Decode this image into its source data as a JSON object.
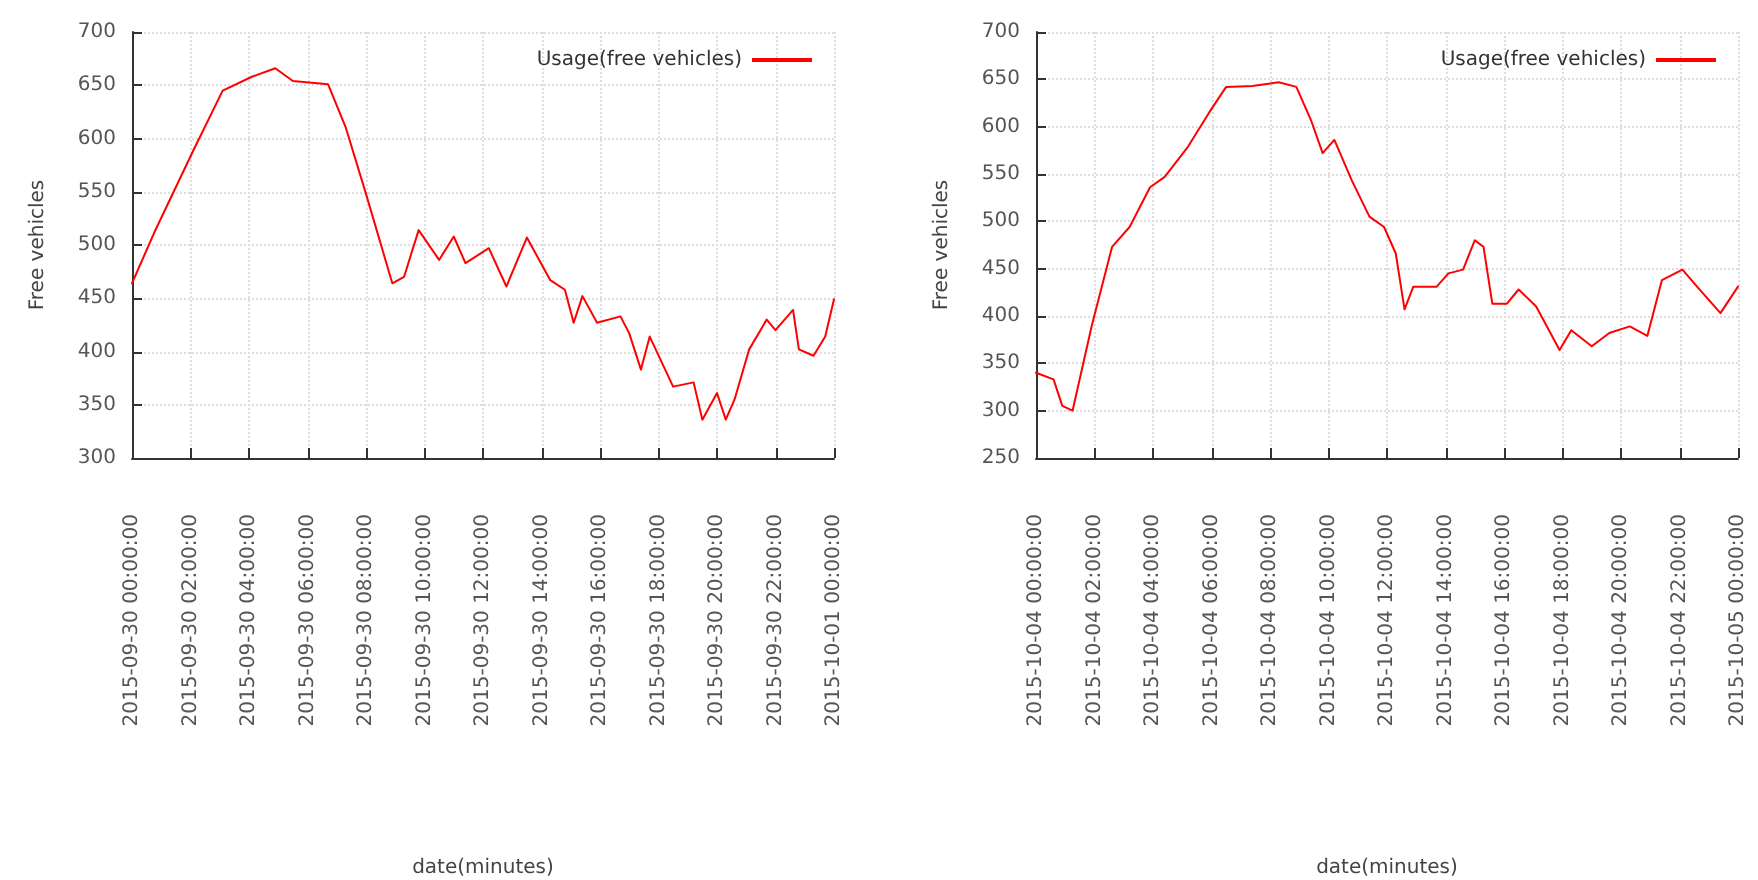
{
  "chart_data": [
    {
      "type": "line",
      "xlabel": "date(minutes)",
      "ylabel": "Free vehicles",
      "legend": "top right",
      "grid": true,
      "marker": "none",
      "line_style": "solid",
      "xlim": [
        "2015-09-30T00:00",
        "2015-10-01T00:00"
      ],
      "xticks": [
        {
          "value": "2015-09-30T00:00",
          "label": "2015-09-30 00:00:00"
        },
        {
          "value": "2015-09-30T02:00",
          "label": "2015-09-30 02:00:00"
        },
        {
          "value": "2015-09-30T04:00",
          "label": "2015-09-30 04:00:00"
        },
        {
          "value": "2015-09-30T06:00",
          "label": "2015-09-30 06:00:00"
        },
        {
          "value": "2015-09-30T08:00",
          "label": "2015-09-30 08:00:00"
        },
        {
          "value": "2015-09-30T10:00",
          "label": "2015-09-30 10:00:00"
        },
        {
          "value": "2015-09-30T12:00",
          "label": "2015-09-30 12:00:00"
        },
        {
          "value": "2015-09-30T14:00",
          "label": "2015-09-30 14:00:00"
        },
        {
          "value": "2015-09-30T16:00",
          "label": "2015-09-30 16:00:00"
        },
        {
          "value": "2015-09-30T18:00",
          "label": "2015-09-30 18:00:00"
        },
        {
          "value": "2015-09-30T20:00",
          "label": "2015-09-30 20:00:00"
        },
        {
          "value": "2015-09-30T22:00",
          "label": "2015-09-30 22:00:00"
        },
        {
          "value": "2015-10-01T00:00",
          "label": "2015-10-01 00:00:00"
        }
      ],
      "ylim": [
        300,
        700
      ],
      "yticks": [
        300,
        350,
        400,
        450,
        500,
        550,
        600,
        650,
        700
      ],
      "series": [
        {
          "name": "Usage(free vehicles)",
          "color": "#ff0000",
          "x": [
            "2015-09-30T00:00",
            "2015-09-30T00:45",
            "2015-09-30T02:06",
            "2015-09-30T03:06",
            "2015-09-30T04:06",
            "2015-09-30T04:54",
            "2015-09-30T05:30",
            "2015-09-30T06:42",
            "2015-09-30T07:18",
            "2015-09-30T08:00",
            "2015-09-30T08:54",
            "2015-09-30T09:18",
            "2015-09-30T09:48",
            "2015-09-30T10:30",
            "2015-09-30T11:00",
            "2015-09-30T11:24",
            "2015-09-30T12:12",
            "2015-09-30T12:48",
            "2015-09-30T13:30",
            "2015-09-30T14:18",
            "2015-09-30T14:48",
            "2015-09-30T15:06",
            "2015-09-30T15:24",
            "2015-09-30T15:54",
            "2015-09-30T16:42",
            "2015-09-30T17:00",
            "2015-09-30T17:24",
            "2015-09-30T17:42",
            "2015-09-30T18:30",
            "2015-09-30T19:12",
            "2015-09-30T19:30",
            "2015-09-30T20:00",
            "2015-09-30T20:18",
            "2015-09-30T20:36",
            "2015-09-30T21:06",
            "2015-09-30T21:42",
            "2015-09-30T22:00",
            "2015-09-30T22:36",
            "2015-09-30T22:48",
            "2015-09-30T23:18",
            "2015-09-30T23:42",
            "2015-10-01T00:00"
          ],
          "values": [
            464,
            511,
            589,
            645,
            658,
            666,
            654,
            651,
            611,
            548,
            464,
            470,
            514,
            486,
            508,
            483,
            497,
            461,
            507,
            467,
            458,
            427,
            452,
            427,
            433,
            417,
            383,
            414,
            367,
            371,
            336,
            361,
            336,
            355,
            402,
            430,
            420,
            439,
            402,
            396,
            414,
            449
          ]
        }
      ]
    },
    {
      "type": "line",
      "xlabel": "date(minutes)",
      "ylabel": "Free vehicles",
      "legend": "top right",
      "grid": true,
      "marker": "none",
      "line_style": "solid",
      "xlim": [
        "2015-10-04T00:00",
        "2015-10-05T00:00"
      ],
      "xticks": [
        {
          "value": "2015-10-04T00:00",
          "label": "2015-10-04 00:00:00"
        },
        {
          "value": "2015-10-04T02:00",
          "label": "2015-10-04 02:00:00"
        },
        {
          "value": "2015-10-04T04:00",
          "label": "2015-10-04 04:00:00"
        },
        {
          "value": "2015-10-04T06:00",
          "label": "2015-10-04 06:00:00"
        },
        {
          "value": "2015-10-04T08:00",
          "label": "2015-10-04 08:00:00"
        },
        {
          "value": "2015-10-04T10:00",
          "label": "2015-10-04 10:00:00"
        },
        {
          "value": "2015-10-04T12:00",
          "label": "2015-10-04 12:00:00"
        },
        {
          "value": "2015-10-04T14:00",
          "label": "2015-10-04 14:00:00"
        },
        {
          "value": "2015-10-04T16:00",
          "label": "2015-10-04 16:00:00"
        },
        {
          "value": "2015-10-04T18:00",
          "label": "2015-10-04 18:00:00"
        },
        {
          "value": "2015-10-04T20:00",
          "label": "2015-10-04 20:00:00"
        },
        {
          "value": "2015-10-04T22:00",
          "label": "2015-10-04 22:00:00"
        },
        {
          "value": "2015-10-05T00:00",
          "label": "2015-10-05 00:00:00"
        }
      ],
      "ylim": [
        250,
        700
      ],
      "yticks": [
        250,
        300,
        350,
        400,
        450,
        500,
        550,
        600,
        650,
        700
      ],
      "series": [
        {
          "name": "Usage(free vehicles)",
          "color": "#ff0000",
          "x": [
            "2015-10-04T00:00",
            "2015-10-04T00:36",
            "2015-10-04T00:54",
            "2015-10-04T01:15",
            "2015-10-04T01:54",
            "2015-10-04T02:36",
            "2015-10-04T03:12",
            "2015-10-04T03:54",
            "2015-10-04T04:24",
            "2015-10-04T05:12",
            "2015-10-04T05:54",
            "2015-10-04T06:30",
            "2015-10-04T07:24",
            "2015-10-04T08:18",
            "2015-10-04T08:54",
            "2015-10-04T09:24",
            "2015-10-04T09:48",
            "2015-10-04T10:12",
            "2015-10-04T10:48",
            "2015-10-04T11:24",
            "2015-10-04T11:54",
            "2015-10-04T12:18",
            "2015-10-04T12:36",
            "2015-10-04T12:54",
            "2015-10-04T13:42",
            "2015-10-04T14:06",
            "2015-10-04T14:36",
            "2015-10-04T15:00",
            "2015-10-04T15:18",
            "2015-10-04T15:36",
            "2015-10-04T16:06",
            "2015-10-04T16:30",
            "2015-10-04T17:06",
            "2015-10-04T17:54",
            "2015-10-04T18:18",
            "2015-10-04T19:00",
            "2015-10-04T19:36",
            "2015-10-04T20:18",
            "2015-10-04T20:54",
            "2015-10-04T21:24",
            "2015-10-04T22:06",
            "2015-10-04T22:36",
            "2015-10-04T23:24",
            "2015-10-05T00:00"
          ],
          "values": [
            340,
            333,
            305,
            300,
            389,
            473,
            494,
            536,
            547,
            579,
            614,
            642,
            643,
            647,
            642,
            607,
            572,
            586,
            543,
            505,
            494,
            466,
            407,
            431,
            431,
            445,
            449,
            480,
            473,
            413,
            413,
            428,
            410,
            364,
            385,
            368,
            382,
            389,
            379,
            438,
            449,
            431,
            403,
            431
          ]
        }
      ]
    }
  ]
}
